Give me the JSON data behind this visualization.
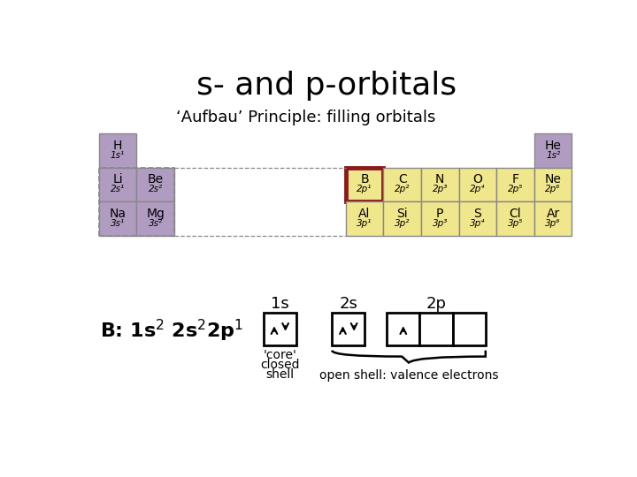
{
  "title": "s- and p-orbitals",
  "subtitle": "‘Aufbau’ Principle: filling orbitals",
  "bg_color": "#ffffff",
  "purple_color": "#b09cc0",
  "yellow_color": "#f0e68c",
  "red_border_color": "#8b1a1a",
  "table_border_color": "#888888",
  "s_cells": [
    [
      "H",
      "1s¹",
      0,
      0
    ],
    [
      "Li",
      "2s¹",
      0,
      1
    ],
    [
      "Be",
      "2s²",
      1,
      1
    ],
    [
      "Na",
      "3s¹",
      0,
      2
    ],
    [
      "Mg",
      "3s²",
      1,
      2
    ]
  ],
  "p_cells": [
    [
      "He",
      "1s²",
      5,
      0,
      false
    ],
    [
      "B",
      "2p¹",
      0,
      1,
      true
    ],
    [
      "C",
      "2p²",
      1,
      1,
      false
    ],
    [
      "N",
      "2p³",
      2,
      1,
      false
    ],
    [
      "O",
      "2p⁴",
      3,
      1,
      false
    ],
    [
      "F",
      "2p⁵",
      4,
      1,
      false
    ],
    [
      "Ne",
      "2p⁶",
      5,
      1,
      false
    ],
    [
      "Al",
      "3p¹",
      0,
      2,
      false
    ],
    [
      "Si",
      "3p²",
      1,
      2,
      false
    ],
    [
      "P",
      "3p³",
      2,
      2,
      false
    ],
    [
      "S",
      "3p⁴",
      3,
      2,
      false
    ],
    [
      "Cl",
      "3p⁵",
      4,
      2,
      false
    ],
    [
      "Ar",
      "3p⁶",
      5,
      2,
      false
    ]
  ]
}
